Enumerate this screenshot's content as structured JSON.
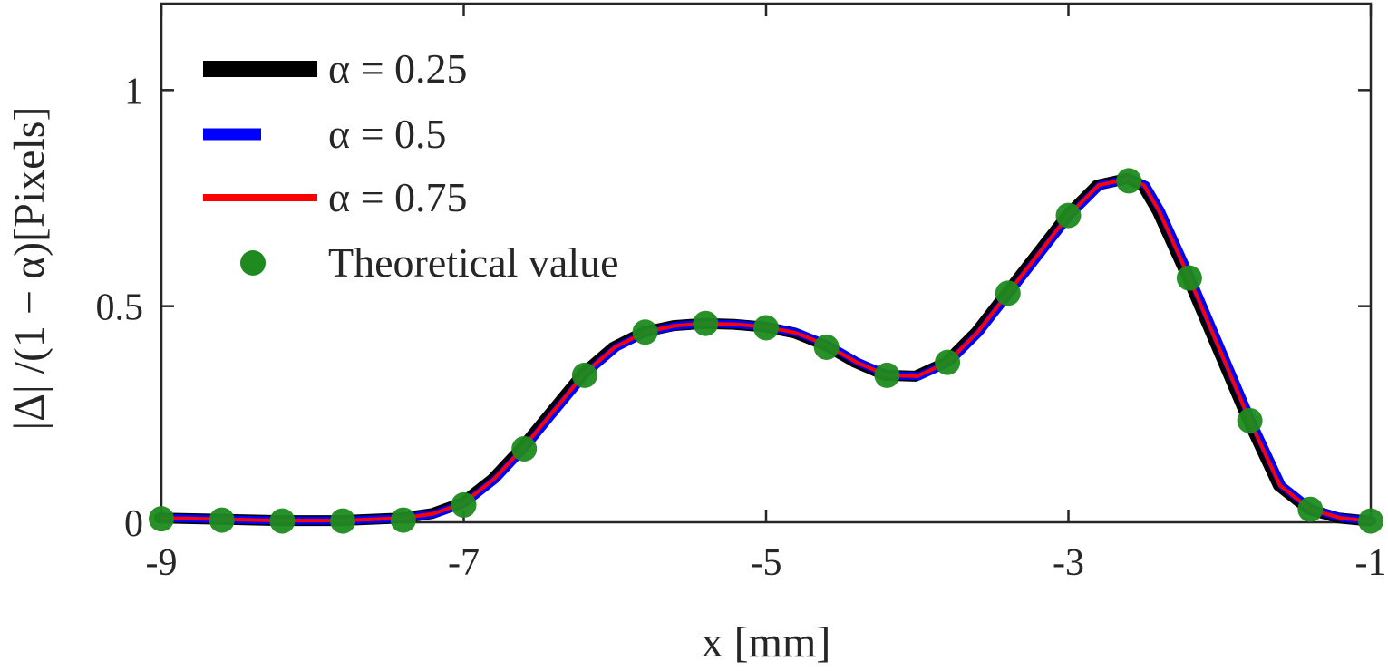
{
  "chart_data": {
    "type": "line",
    "xlabel": "x [mm]",
    "ylabel": "|Δ| /(1 − α)[Pixels]",
    "xlim": [
      -9,
      -1
    ],
    "ylim": [
      0,
      1.2
    ],
    "xticks": [
      -9,
      -7,
      -5,
      -3,
      -1
    ],
    "xtick_labels": [
      "-9",
      "-7",
      "-5",
      "-3",
      "-1"
    ],
    "yticks": [
      0,
      0.5,
      1
    ],
    "ytick_labels": [
      "0",
      "0.5",
      "1"
    ],
    "grid": false,
    "legend_position": "top-left",
    "series": [
      {
        "name": "α = 0.25",
        "color": "#000000",
        "x": [
          -9,
          -8.6,
          -8.2,
          -7.8,
          -7.4,
          -7.2,
          -7.0,
          -6.8,
          -6.6,
          -6.4,
          -6.2,
          -6.0,
          -5.8,
          -5.6,
          -5.4,
          -5.2,
          -5.0,
          -4.8,
          -4.6,
          -4.4,
          -4.2,
          -4.0,
          -3.8,
          -3.6,
          -3.4,
          -3.2,
          -3.0,
          -2.8,
          -2.6,
          -2.5,
          -2.4,
          -2.2,
          -2.0,
          -1.8,
          -1.6,
          -1.4,
          -1.2,
          -1.0
        ],
        "y": [
          0.01,
          0.007,
          0.004,
          0.004,
          0.01,
          0.02,
          0.045,
          0.1,
          0.175,
          0.26,
          0.345,
          0.405,
          0.44,
          0.455,
          0.46,
          0.458,
          0.452,
          0.438,
          0.41,
          0.37,
          0.34,
          0.338,
          0.37,
          0.44,
          0.53,
          0.62,
          0.71,
          0.78,
          0.795,
          0.78,
          0.72,
          0.565,
          0.4,
          0.235,
          0.085,
          0.03,
          0.01,
          0.003
        ]
      },
      {
        "name": "α = 0.5",
        "color": "#0000ff",
        "x": [
          -9,
          -8.6,
          -8.2,
          -7.8,
          -7.4,
          -7.2,
          -7.0,
          -6.8,
          -6.6,
          -6.4,
          -6.2,
          -6.0,
          -5.8,
          -5.6,
          -5.4,
          -5.2,
          -5.0,
          -4.8,
          -4.6,
          -4.4,
          -4.2,
          -4.0,
          -3.8,
          -3.6,
          -3.4,
          -3.2,
          -3.0,
          -2.8,
          -2.6,
          -2.5,
          -2.4,
          -2.2,
          -2.0,
          -1.8,
          -1.6,
          -1.4,
          -1.2,
          -1.0
        ],
        "y": [
          0.01,
          0.007,
          0.004,
          0.004,
          0.01,
          0.02,
          0.045,
          0.1,
          0.175,
          0.26,
          0.345,
          0.405,
          0.44,
          0.455,
          0.46,
          0.458,
          0.452,
          0.438,
          0.41,
          0.37,
          0.34,
          0.338,
          0.37,
          0.44,
          0.53,
          0.62,
          0.71,
          0.78,
          0.795,
          0.78,
          0.72,
          0.565,
          0.4,
          0.235,
          0.085,
          0.03,
          0.01,
          0.003
        ]
      },
      {
        "name": "α = 0.75",
        "color": "#ff0000",
        "x": [
          -9,
          -8.6,
          -8.2,
          -7.8,
          -7.4,
          -7.2,
          -7.0,
          -6.8,
          -6.6,
          -6.4,
          -6.2,
          -6.0,
          -5.8,
          -5.6,
          -5.4,
          -5.2,
          -5.0,
          -4.8,
          -4.6,
          -4.4,
          -4.2,
          -4.0,
          -3.8,
          -3.6,
          -3.4,
          -3.2,
          -3.0,
          -2.8,
          -2.6,
          -2.5,
          -2.4,
          -2.2,
          -2.0,
          -1.8,
          -1.6,
          -1.4,
          -1.2,
          -1.0
        ],
        "y": [
          0.01,
          0.007,
          0.004,
          0.004,
          0.01,
          0.02,
          0.045,
          0.1,
          0.175,
          0.26,
          0.345,
          0.405,
          0.44,
          0.455,
          0.46,
          0.458,
          0.452,
          0.438,
          0.41,
          0.37,
          0.34,
          0.338,
          0.37,
          0.44,
          0.53,
          0.62,
          0.71,
          0.78,
          0.795,
          0.78,
          0.72,
          0.565,
          0.4,
          0.235,
          0.085,
          0.03,
          0.01,
          0.003
        ]
      },
      {
        "name": "Theoretical value",
        "color": "#1f8a1f",
        "marker": "circle",
        "x": [
          -9,
          -8.6,
          -8.2,
          -7.8,
          -7.4,
          -7.0,
          -6.6,
          -6.2,
          -5.8,
          -5.4,
          -5.0,
          -4.6,
          -4.2,
          -3.8,
          -3.4,
          -3.0,
          -2.6,
          -2.2,
          -1.8,
          -1.4,
          -1.0
        ],
        "y": [
          0.008,
          0.005,
          0.003,
          0.003,
          0.005,
          0.04,
          0.17,
          0.34,
          0.44,
          0.46,
          0.45,
          0.405,
          0.34,
          0.37,
          0.53,
          0.71,
          0.79,
          0.565,
          0.235,
          0.03,
          0.003
        ]
      }
    ]
  }
}
